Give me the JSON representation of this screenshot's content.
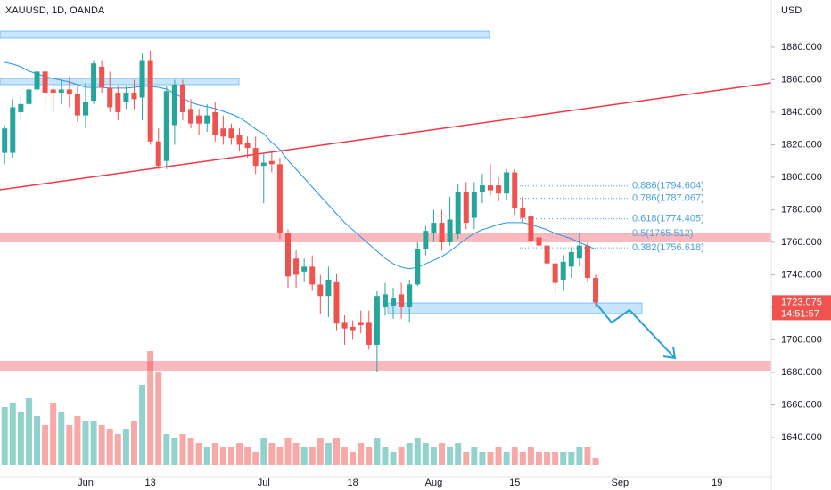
{
  "chart_data": {
    "type": "candlestick",
    "title": "XAUUSD, 1D, OANDA",
    "currency": "USD",
    "countdown": "14:51:57",
    "up_color": "#26a69a",
    "down_color": "#ef5350",
    "grid": false,
    "ylim": [
      1615.9,
      1909.0
    ],
    "yticks": [
      {
        "value": 1640,
        "label": "1640.000"
      },
      {
        "value": 1660,
        "label": "1660.000"
      },
      {
        "value": 1680,
        "label": "1680.000"
      },
      {
        "value": 1700,
        "label": "1700.000"
      },
      {
        "value": 1720,
        "label": "1720.000"
      },
      {
        "value": 1740,
        "label": "1740.000"
      },
      {
        "value": 1760,
        "label": "1760.000"
      },
      {
        "value": 1780,
        "label": "1780.000"
      },
      {
        "value": 1800,
        "label": "1800.000"
      },
      {
        "value": 1820,
        "label": "1820.000"
      },
      {
        "value": 1840,
        "label": "1840.000"
      },
      {
        "value": 1860,
        "label": "1860.000"
      },
      {
        "value": 1880,
        "label": "1880.000"
      }
    ],
    "vlim": [
      0,
      130
    ],
    "categories": [
      null,
      null,
      null,
      null,
      null,
      null,
      null,
      null,
      null,
      null,
      "Jun",
      null,
      null,
      null,
      null,
      null,
      null,
      null,
      "13",
      null,
      null,
      null,
      null,
      null,
      null,
      null,
      null,
      null,
      null,
      null,
      null,
      null,
      "Jul",
      null,
      null,
      null,
      null,
      null,
      null,
      null,
      null,
      null,
      null,
      "18",
      null,
      null,
      null,
      null,
      null,
      null,
      null,
      null,
      null,
      "Aug",
      null,
      null,
      null,
      null,
      null,
      null,
      null,
      null,
      null,
      "15",
      null,
      null,
      null,
      null,
      null,
      null,
      null,
      null,
      null,
      null,
      null,
      null,
      "Sep",
      null,
      null,
      null,
      null,
      null,
      null,
      null,
      null,
      null,
      null,
      null,
      "19",
      null,
      null,
      null,
      null,
      null,
      null
    ],
    "open": [
      1815,
      1815,
      1840,
      1845,
      1854,
      1865,
      1854,
      1852,
      1854,
      1851,
      1838,
      1847,
      1868,
      1855,
      1852,
      1846,
      1852,
      1849,
      1872,
      1822,
      1810,
      1832,
      1857,
      1842,
      1838,
      1833,
      1840,
      1830,
      1830,
      1826,
      1821,
      1818,
      1807,
      1810,
      1808,
      1766,
      1750,
      1742,
      1745,
      1734,
      1727,
      1736,
      1711,
      1708,
      1711,
      1711,
      1697,
      1720,
      1721,
      1728,
      1720,
      1734,
      1756,
      1766,
      1772,
      1760,
      1765,
      1791,
      1775,
      1791,
      1795,
      1795,
      1790,
      1803,
      1781,
      1776,
      1763,
      1758,
      1747,
      1737,
      1745,
      1750,
      1758,
      1738,
      null,
      null,
      null,
      null,
      null,
      null,
      null,
      null,
      null,
      null,
      null,
      null,
      null,
      null,
      null,
      null,
      null,
      null,
      null,
      null,
      null
    ],
    "high": [
      1832,
      1848,
      1850,
      1858,
      1869,
      1868,
      1858,
      1860,
      1862,
      1856,
      1858,
      1872,
      1872,
      1865,
      1856,
      1856,
      1860,
      1876,
      1878,
      1830,
      1856,
      1860,
      1860,
      1848,
      1842,
      1845,
      1846,
      1838,
      1833,
      1830,
      1825,
      1825,
      1815,
      1816,
      1812,
      1768,
      1755,
      1750,
      1752,
      1740,
      1745,
      1741,
      1715,
      1712,
      1718,
      1718,
      1730,
      1735,
      1732,
      1735,
      1737,
      1760,
      1770,
      1780,
      1780,
      1788,
      1796,
      1797,
      1797,
      1802,
      1808,
      1800,
      1805,
      1805,
      1788,
      1780,
      1765,
      1760,
      1750,
      1752,
      1757,
      1766,
      1760,
      1740,
      null,
      null,
      null,
      null,
      null,
      null,
      null,
      null,
      null,
      null,
      null,
      null,
      null,
      null,
      null,
      null,
      null,
      null,
      null,
      null,
      null
    ],
    "low": [
      1808,
      1812,
      1835,
      1838,
      1850,
      1842,
      1840,
      1845,
      1843,
      1834,
      1830,
      1845,
      1852,
      1840,
      1835,
      1842,
      1842,
      1835,
      1820,
      1805,
      1805,
      1820,
      1835,
      1830,
      1826,
      1828,
      1822,
      1820,
      1820,
      1816,
      1812,
      1802,
      1784,
      1803,
      1762,
      1732,
      1732,
      1736,
      1730,
      1716,
      1714,
      1706,
      1697,
      1700,
      1704,
      1694,
      1680,
      1715,
      1713,
      1713,
      1711,
      1733,
      1752,
      1760,
      1755,
      1758,
      1762,
      1768,
      1768,
      1784,
      1789,
      1785,
      1786,
      1777,
      1772,
      1758,
      1750,
      1740,
      1728,
      1730,
      1738,
      1745,
      1736,
      1720,
      null,
      null,
      null,
      null,
      null,
      null,
      null,
      null,
      null,
      null,
      null,
      null,
      null,
      null,
      null,
      null,
      null,
      null,
      null,
      null,
      null
    ],
    "close": [
      1830,
      1843,
      1845,
      1854,
      1865,
      1852,
      1852,
      1854,
      1851,
      1838,
      1846,
      1870,
      1855,
      1843,
      1840,
      1852,
      1848,
      1872,
      1822,
      1807,
      1853,
      1857,
      1840,
      1833,
      1833,
      1838,
      1826,
      1825,
      1824,
      1820,
      1818,
      1807,
      1809,
      1808,
      1766,
      1739,
      1740,
      1745,
      1734,
      1727,
      1737,
      1710,
      1707,
      1706,
      1709,
      1697,
      1727,
      1728,
      1726,
      1720,
      1734,
      1756,
      1767,
      1772,
      1760,
      1774,
      1791,
      1772,
      1791,
      1795,
      1792,
      1790,
      1803,
      1781,
      1775,
      1761,
      1758,
      1747,
      1735,
      1748,
      1754,
      1758,
      1738,
      1723.075,
      null,
      null,
      null,
      null,
      null,
      null,
      null,
      null,
      null,
      null,
      null,
      null,
      null,
      null,
      null,
      null,
      null,
      null,
      null,
      null,
      null
    ],
    "volume": [
      65,
      70,
      60,
      75,
      55,
      45,
      70,
      60,
      45,
      55,
      50,
      50,
      45,
      40,
      35,
      40,
      50,
      90,
      128,
      105,
      35,
      30,
      35,
      30,
      25,
      20,
      25,
      20,
      20,
      25,
      20,
      15,
      30,
      25,
      20,
      30,
      25,
      20,
      20,
      30,
      25,
      30,
      20,
      15,
      25,
      20,
      30,
      20,
      15,
      20,
      25,
      30,
      25,
      20,
      25,
      20,
      25,
      15,
      20,
      15,
      15,
      20,
      15,
      20,
      15,
      20,
      15,
      15,
      15,
      15,
      15,
      20,
      20,
      8,
      null,
      null,
      null,
      null,
      null,
      null,
      null,
      null,
      null,
      null,
      null,
      null,
      null,
      null,
      null,
      null,
      null,
      null,
      null,
      null,
      null
    ],
    "ma": {
      "color": "#2196f3",
      "values": [
        1870.7,
        1869.6,
        1867.9,
        1865.2,
        1863.6,
        1861.9,
        1860.8,
        1859.7,
        1858.6,
        1857.0,
        1855.3,
        1855.3,
        1855.3,
        1854.8,
        1854.8,
        1854.8,
        1855.3,
        1855.9,
        1855.9,
        1855.3,
        1854.2,
        1851.5,
        1848.8,
        1846.0,
        1844.4,
        1843.3,
        1842.2,
        1840.5,
        1838.9,
        1836.7,
        1833.4,
        1829.6,
        1826.8,
        1821.4,
        1817.0,
        1810.4,
        1804.9,
        1799.5,
        1794.0,
        1788.5,
        1783.0,
        1777.5,
        1772.1,
        1767.7,
        1763.3,
        1758.9,
        1754.5,
        1750.1,
        1746.8,
        1744.7,
        1743.6,
        1744.7,
        1746.8,
        1749.0,
        1751.2,
        1754.5,
        1758.4,
        1762.2,
        1765.5,
        1767.7,
        1769.3,
        1771.0,
        1772.1,
        1772.1,
        1772.1,
        1771.0,
        1769.3,
        1767.7,
        1765.5,
        1763.8,
        1762.2,
        1760.0,
        1757.8,
        1755.6,
        null,
        null,
        null,
        null,
        null,
        null,
        null,
        null,
        null,
        null,
        null,
        null,
        null,
        null,
        null,
        null,
        null,
        null,
        null,
        null,
        null
      ]
    },
    "fib_levels": [
      {
        "value": 1794.604,
        "label": "0.886(1794.604)"
      },
      {
        "value": 1787.067,
        "label": "0.786(1787.067)"
      },
      {
        "value": 1774.405,
        "label": "0.618(1774.405)"
      },
      {
        "value": 1765.512,
        "label": "0.5(1765.512)"
      },
      {
        "value": 1756.618,
        "label": "0.382(1756.618)"
      }
    ]
  }
}
